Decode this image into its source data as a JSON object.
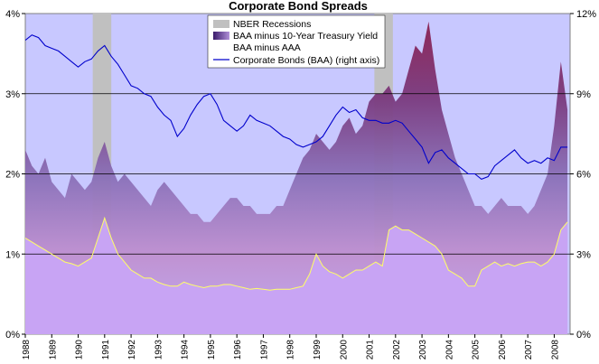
{
  "chart_data": {
    "type": "area",
    "title": "Corporate Bond Spreads",
    "x_range": [
      1988.0,
      2008.6
    ],
    "y_left": {
      "range": [
        0,
        4
      ],
      "ticks": [
        "0%",
        "1%",
        "2%",
        "3%",
        "4%"
      ],
      "values": [
        0,
        1,
        2,
        3,
        4
      ]
    },
    "y_right": {
      "range": [
        0,
        12
      ],
      "ticks": [
        "0%",
        "3%",
        "6%",
        "9%",
        "12%"
      ],
      "values": [
        0,
        3,
        6,
        9,
        12
      ]
    },
    "x_ticks": [
      "1988",
      "1989",
      "1990",
      "1991",
      "1992",
      "1993",
      "1994",
      "1995",
      "1996",
      "1997",
      "1998",
      "1999",
      "2000",
      "2001",
      "2002",
      "2003",
      "2004",
      "2005",
      "2006",
      "2007",
      "2008"
    ],
    "x_tick_values": [
      1988,
      1989,
      1990,
      1991,
      1992,
      1993,
      1994,
      1995,
      1996,
      1997,
      1998,
      1999,
      2000,
      2001,
      2002,
      2003,
      2004,
      2005,
      2006,
      2007,
      2008
    ],
    "grid_lines": [
      1,
      2,
      3
    ],
    "legend": {
      "placement": "top-center",
      "items": [
        {
          "label": "NBER Recessions",
          "kind": "box",
          "color": "#c0c0c0"
        },
        {
          "label": "BAA minus 10-Year Treasury Yield",
          "kind": "gradient",
          "color": "#5a2a8a"
        },
        {
          "label": "BAA minus AAA",
          "kind": "box",
          "color": "#ffffff"
        },
        {
          "label": "Corporate Bonds (BAA) (right axis)",
          "kind": "line",
          "color": "#0000cc"
        }
      ]
    },
    "recessions": [
      [
        1990.55,
        1991.25
      ],
      [
        2001.2,
        2001.9
      ]
    ],
    "series": [
      {
        "name": "BAA minus 10-Year Treasury Yield",
        "axis": "left",
        "x": [
          1988.0,
          1988.25,
          1988.5,
          1988.75,
          1989.0,
          1989.25,
          1989.5,
          1989.75,
          1990.0,
          1990.25,
          1990.5,
          1990.75,
          1991.0,
          1991.25,
          1991.5,
          1991.75,
          1992.0,
          1992.25,
          1992.5,
          1992.75,
          1993.0,
          1993.25,
          1993.5,
          1993.75,
          1994.0,
          1994.25,
          1994.5,
          1994.75,
          1995.0,
          1995.25,
          1995.5,
          1995.75,
          1996.0,
          1996.25,
          1996.5,
          1996.75,
          1997.0,
          1997.25,
          1997.5,
          1997.75,
          1998.0,
          1998.25,
          1998.5,
          1998.75,
          1999.0,
          1999.25,
          1999.5,
          1999.75,
          2000.0,
          2000.25,
          2000.5,
          2000.75,
          2001.0,
          2001.25,
          2001.5,
          2001.75,
          2002.0,
          2002.25,
          2002.5,
          2002.75,
          2003.0,
          2003.25,
          2003.5,
          2003.75,
          2004.0,
          2004.25,
          2004.5,
          2004.75,
          2005.0,
          2005.25,
          2005.5,
          2005.75,
          2006.0,
          2006.25,
          2006.5,
          2006.75,
          2007.0,
          2007.25,
          2007.5,
          2007.75,
          2008.0,
          2008.25,
          2008.5
        ],
        "values": [
          2.3,
          2.1,
          2.0,
          2.2,
          1.9,
          1.8,
          1.7,
          2.0,
          1.9,
          1.8,
          1.9,
          2.2,
          2.4,
          2.1,
          1.9,
          2.0,
          1.9,
          1.8,
          1.7,
          1.6,
          1.8,
          1.9,
          1.8,
          1.7,
          1.6,
          1.5,
          1.5,
          1.4,
          1.4,
          1.5,
          1.6,
          1.7,
          1.7,
          1.6,
          1.6,
          1.5,
          1.5,
          1.5,
          1.6,
          1.6,
          1.8,
          2.0,
          2.2,
          2.3,
          2.5,
          2.4,
          2.3,
          2.4,
          2.6,
          2.7,
          2.5,
          2.6,
          2.9,
          3.0,
          3.0,
          3.1,
          2.9,
          3.0,
          3.3,
          3.6,
          3.5,
          3.9,
          3.3,
          2.8,
          2.5,
          2.2,
          2.0,
          1.8,
          1.6,
          1.6,
          1.5,
          1.6,
          1.7,
          1.6,
          1.6,
          1.6,
          1.5,
          1.6,
          1.8,
          2.0,
          2.6,
          3.4,
          2.8
        ]
      },
      {
        "name": "BAA minus AAA",
        "axis": "left",
        "x": [
          1988.0,
          1988.25,
          1988.5,
          1988.75,
          1989.0,
          1989.25,
          1989.5,
          1989.75,
          1990.0,
          1990.25,
          1990.5,
          1990.75,
          1991.0,
          1991.25,
          1991.5,
          1991.75,
          1992.0,
          1992.25,
          1992.5,
          1992.75,
          1993.0,
          1993.25,
          1993.5,
          1993.75,
          1994.0,
          1994.25,
          1994.5,
          1994.75,
          1995.0,
          1995.25,
          1995.5,
          1995.75,
          1996.0,
          1996.25,
          1996.5,
          1996.75,
          1997.0,
          1997.25,
          1997.5,
          1997.75,
          1998.0,
          1998.25,
          1998.5,
          1998.75,
          1999.0,
          1999.25,
          1999.5,
          1999.75,
          2000.0,
          2000.25,
          2000.5,
          2000.75,
          2001.0,
          2001.25,
          2001.5,
          2001.75,
          2002.0,
          2002.25,
          2002.5,
          2002.75,
          2003.0,
          2003.25,
          2003.5,
          2003.75,
          2004.0,
          2004.25,
          2004.5,
          2004.75,
          2005.0,
          2005.25,
          2005.5,
          2005.75,
          2006.0,
          2006.25,
          2006.5,
          2006.75,
          2007.0,
          2007.25,
          2007.5,
          2007.75,
          2008.0,
          2008.25,
          2008.5
        ],
        "values": [
          1.2,
          1.15,
          1.1,
          1.05,
          1.0,
          0.95,
          0.9,
          0.88,
          0.85,
          0.9,
          0.95,
          1.2,
          1.45,
          1.2,
          1.0,
          0.9,
          0.8,
          0.75,
          0.7,
          0.7,
          0.65,
          0.62,
          0.6,
          0.6,
          0.65,
          0.62,
          0.6,
          0.58,
          0.6,
          0.6,
          0.62,
          0.62,
          0.6,
          0.58,
          0.56,
          0.57,
          0.56,
          0.55,
          0.56,
          0.56,
          0.56,
          0.58,
          0.6,
          0.75,
          1.0,
          0.85,
          0.78,
          0.75,
          0.7,
          0.75,
          0.8,
          0.8,
          0.85,
          0.9,
          0.85,
          1.3,
          1.35,
          1.3,
          1.3,
          1.25,
          1.2,
          1.15,
          1.1,
          1.0,
          0.8,
          0.75,
          0.7,
          0.6,
          0.6,
          0.8,
          0.85,
          0.9,
          0.85,
          0.88,
          0.85,
          0.88,
          0.9,
          0.9,
          0.85,
          0.9,
          1.0,
          1.3,
          1.4
        ]
      },
      {
        "name": "Corporate Bonds (BAA) (right axis)",
        "axis": "right",
        "x": [
          1988.0,
          1988.25,
          1988.5,
          1988.75,
          1989.0,
          1989.25,
          1989.5,
          1989.75,
          1990.0,
          1990.25,
          1990.5,
          1990.75,
          1991.0,
          1991.25,
          1991.5,
          1991.75,
          1992.0,
          1992.25,
          1992.5,
          1992.75,
          1993.0,
          1993.25,
          1993.5,
          1993.75,
          1994.0,
          1994.25,
          1994.5,
          1994.75,
          1995.0,
          1995.25,
          1995.5,
          1995.75,
          1996.0,
          1996.25,
          1996.5,
          1996.75,
          1997.0,
          1997.25,
          1997.5,
          1997.75,
          1998.0,
          1998.25,
          1998.5,
          1998.75,
          1999.0,
          1999.25,
          1999.5,
          1999.75,
          2000.0,
          2000.25,
          2000.5,
          2000.75,
          2001.0,
          2001.25,
          2001.5,
          2001.75,
          2002.0,
          2002.25,
          2002.5,
          2002.75,
          2003.0,
          2003.25,
          2003.5,
          2003.75,
          2004.0,
          2004.25,
          2004.5,
          2004.75,
          2005.0,
          2005.25,
          2005.5,
          2005.75,
          2006.0,
          2006.25,
          2006.5,
          2006.75,
          2007.0,
          2007.25,
          2007.5,
          2007.75,
          2008.0,
          2008.25,
          2008.5
        ],
        "values": [
          11.0,
          11.2,
          11.1,
          10.8,
          10.7,
          10.6,
          10.4,
          10.2,
          10.0,
          10.2,
          10.3,
          10.6,
          10.8,
          10.4,
          10.1,
          9.7,
          9.3,
          9.2,
          9.0,
          8.9,
          8.5,
          8.2,
          8.0,
          7.4,
          7.7,
          8.2,
          8.6,
          8.9,
          9.0,
          8.6,
          8.0,
          7.8,
          7.6,
          7.8,
          8.2,
          8.0,
          7.9,
          7.8,
          7.6,
          7.4,
          7.3,
          7.1,
          7.0,
          7.1,
          7.2,
          7.4,
          7.8,
          8.2,
          8.5,
          8.3,
          8.4,
          8.1,
          8.0,
          8.0,
          7.9,
          7.9,
          8.0,
          7.9,
          7.6,
          7.3,
          7.0,
          6.4,
          6.8,
          6.9,
          6.6,
          6.4,
          6.2,
          6.0,
          6.0,
          5.8,
          5.9,
          6.3,
          6.5,
          6.7,
          6.9,
          6.6,
          6.4,
          6.5,
          6.4,
          6.6,
          6.5,
          7.0,
          7.0
        ]
      }
    ]
  }
}
